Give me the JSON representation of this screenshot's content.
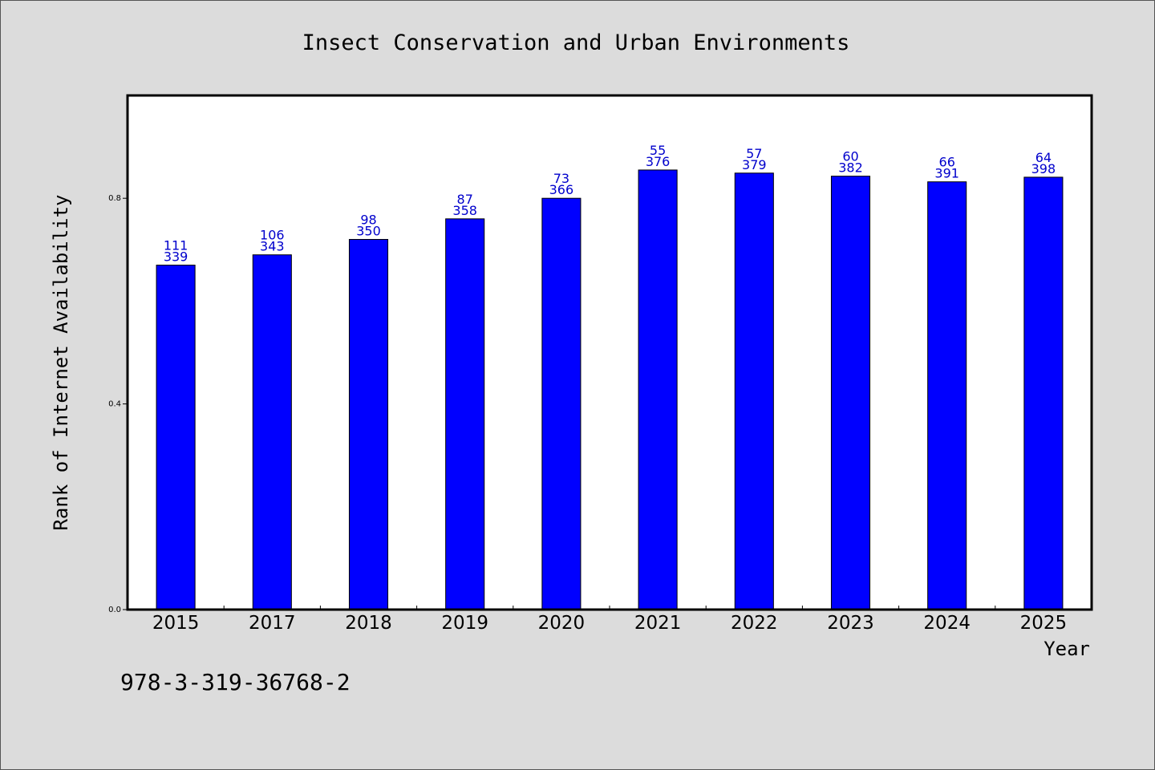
{
  "chart_data": {
    "type": "bar",
    "title": "Insect Conservation and Urban Environments",
    "xlabel": "Year",
    "ylabel": "Rank of Internet Availability",
    "categories": [
      "2015",
      "2017",
      "2018",
      "2019",
      "2020",
      "2021",
      "2022",
      "2023",
      "2024",
      "2025"
    ],
    "values": [
      0.67,
      0.69,
      0.72,
      0.76,
      0.8,
      0.855,
      0.849,
      0.843,
      0.832,
      0.841
    ],
    "label_top": [
      "111",
      "106",
      "98",
      "87",
      "73",
      "55",
      "57",
      "60",
      "66",
      "64"
    ],
    "label_bottom": [
      "339",
      "343",
      "350",
      "358",
      "366",
      "376",
      "379",
      "382",
      "391",
      "398"
    ],
    "ylim": [
      0,
      1.0
    ],
    "yticks": [
      {
        "value": 0.0,
        "label": "0.0"
      },
      {
        "value": 0.4,
        "label": "0.4"
      },
      {
        "value": 0.8,
        "label": "0.8"
      }
    ],
    "grid": false,
    "colors": {
      "bar": "#0000ff",
      "bar_edge": "#000000",
      "label": "#0000cc",
      "plot_bg": "#ffffff",
      "page_bg": "#dcdcdc"
    }
  },
  "footer": {
    "isbn": "978-3-319-36768-2"
  }
}
